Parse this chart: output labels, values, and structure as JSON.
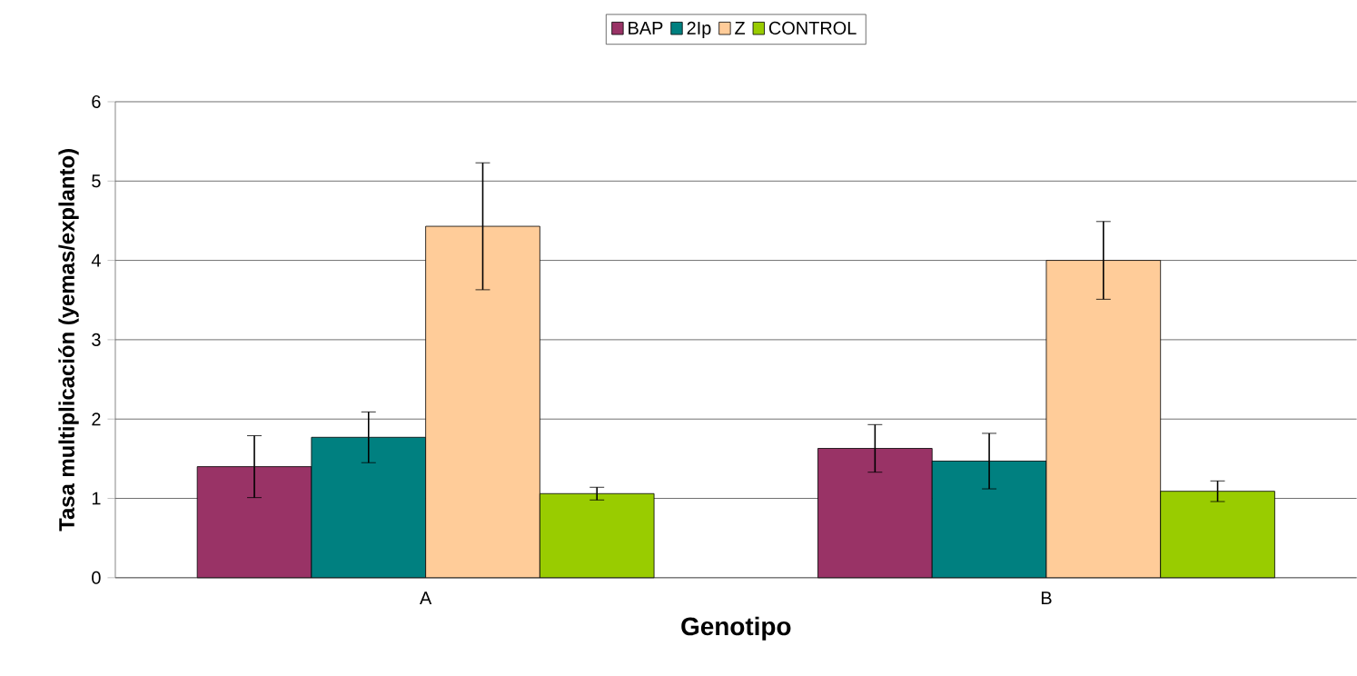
{
  "chart_data": {
    "type": "bar",
    "xlabel": "Genotipo",
    "ylabel": "Tasa multiplicación (yemas/explanto)",
    "categories": [
      "A",
      "B"
    ],
    "series": [
      {
        "name": "BAP",
        "color": "#993366",
        "values": [
          1.4,
          1.63
        ],
        "errors": [
          0.39,
          0.3
        ]
      },
      {
        "name": "2Ip",
        "color": "#008080",
        "values": [
          1.77,
          1.47
        ],
        "errors": [
          0.32,
          0.35
        ]
      },
      {
        "name": "Z",
        "color": "#ffcc99",
        "values": [
          4.43,
          4.0
        ],
        "errors": [
          0.8,
          0.49
        ]
      },
      {
        "name": "CONTROL",
        "color": "#99cc00",
        "values": [
          1.06,
          1.09
        ],
        "errors": [
          0.08,
          0.13
        ]
      }
    ],
    "ylim": [
      0,
      6
    ],
    "yticks": [
      0,
      1,
      2,
      3,
      4,
      5,
      6
    ],
    "grid": "y",
    "legend": "top"
  }
}
